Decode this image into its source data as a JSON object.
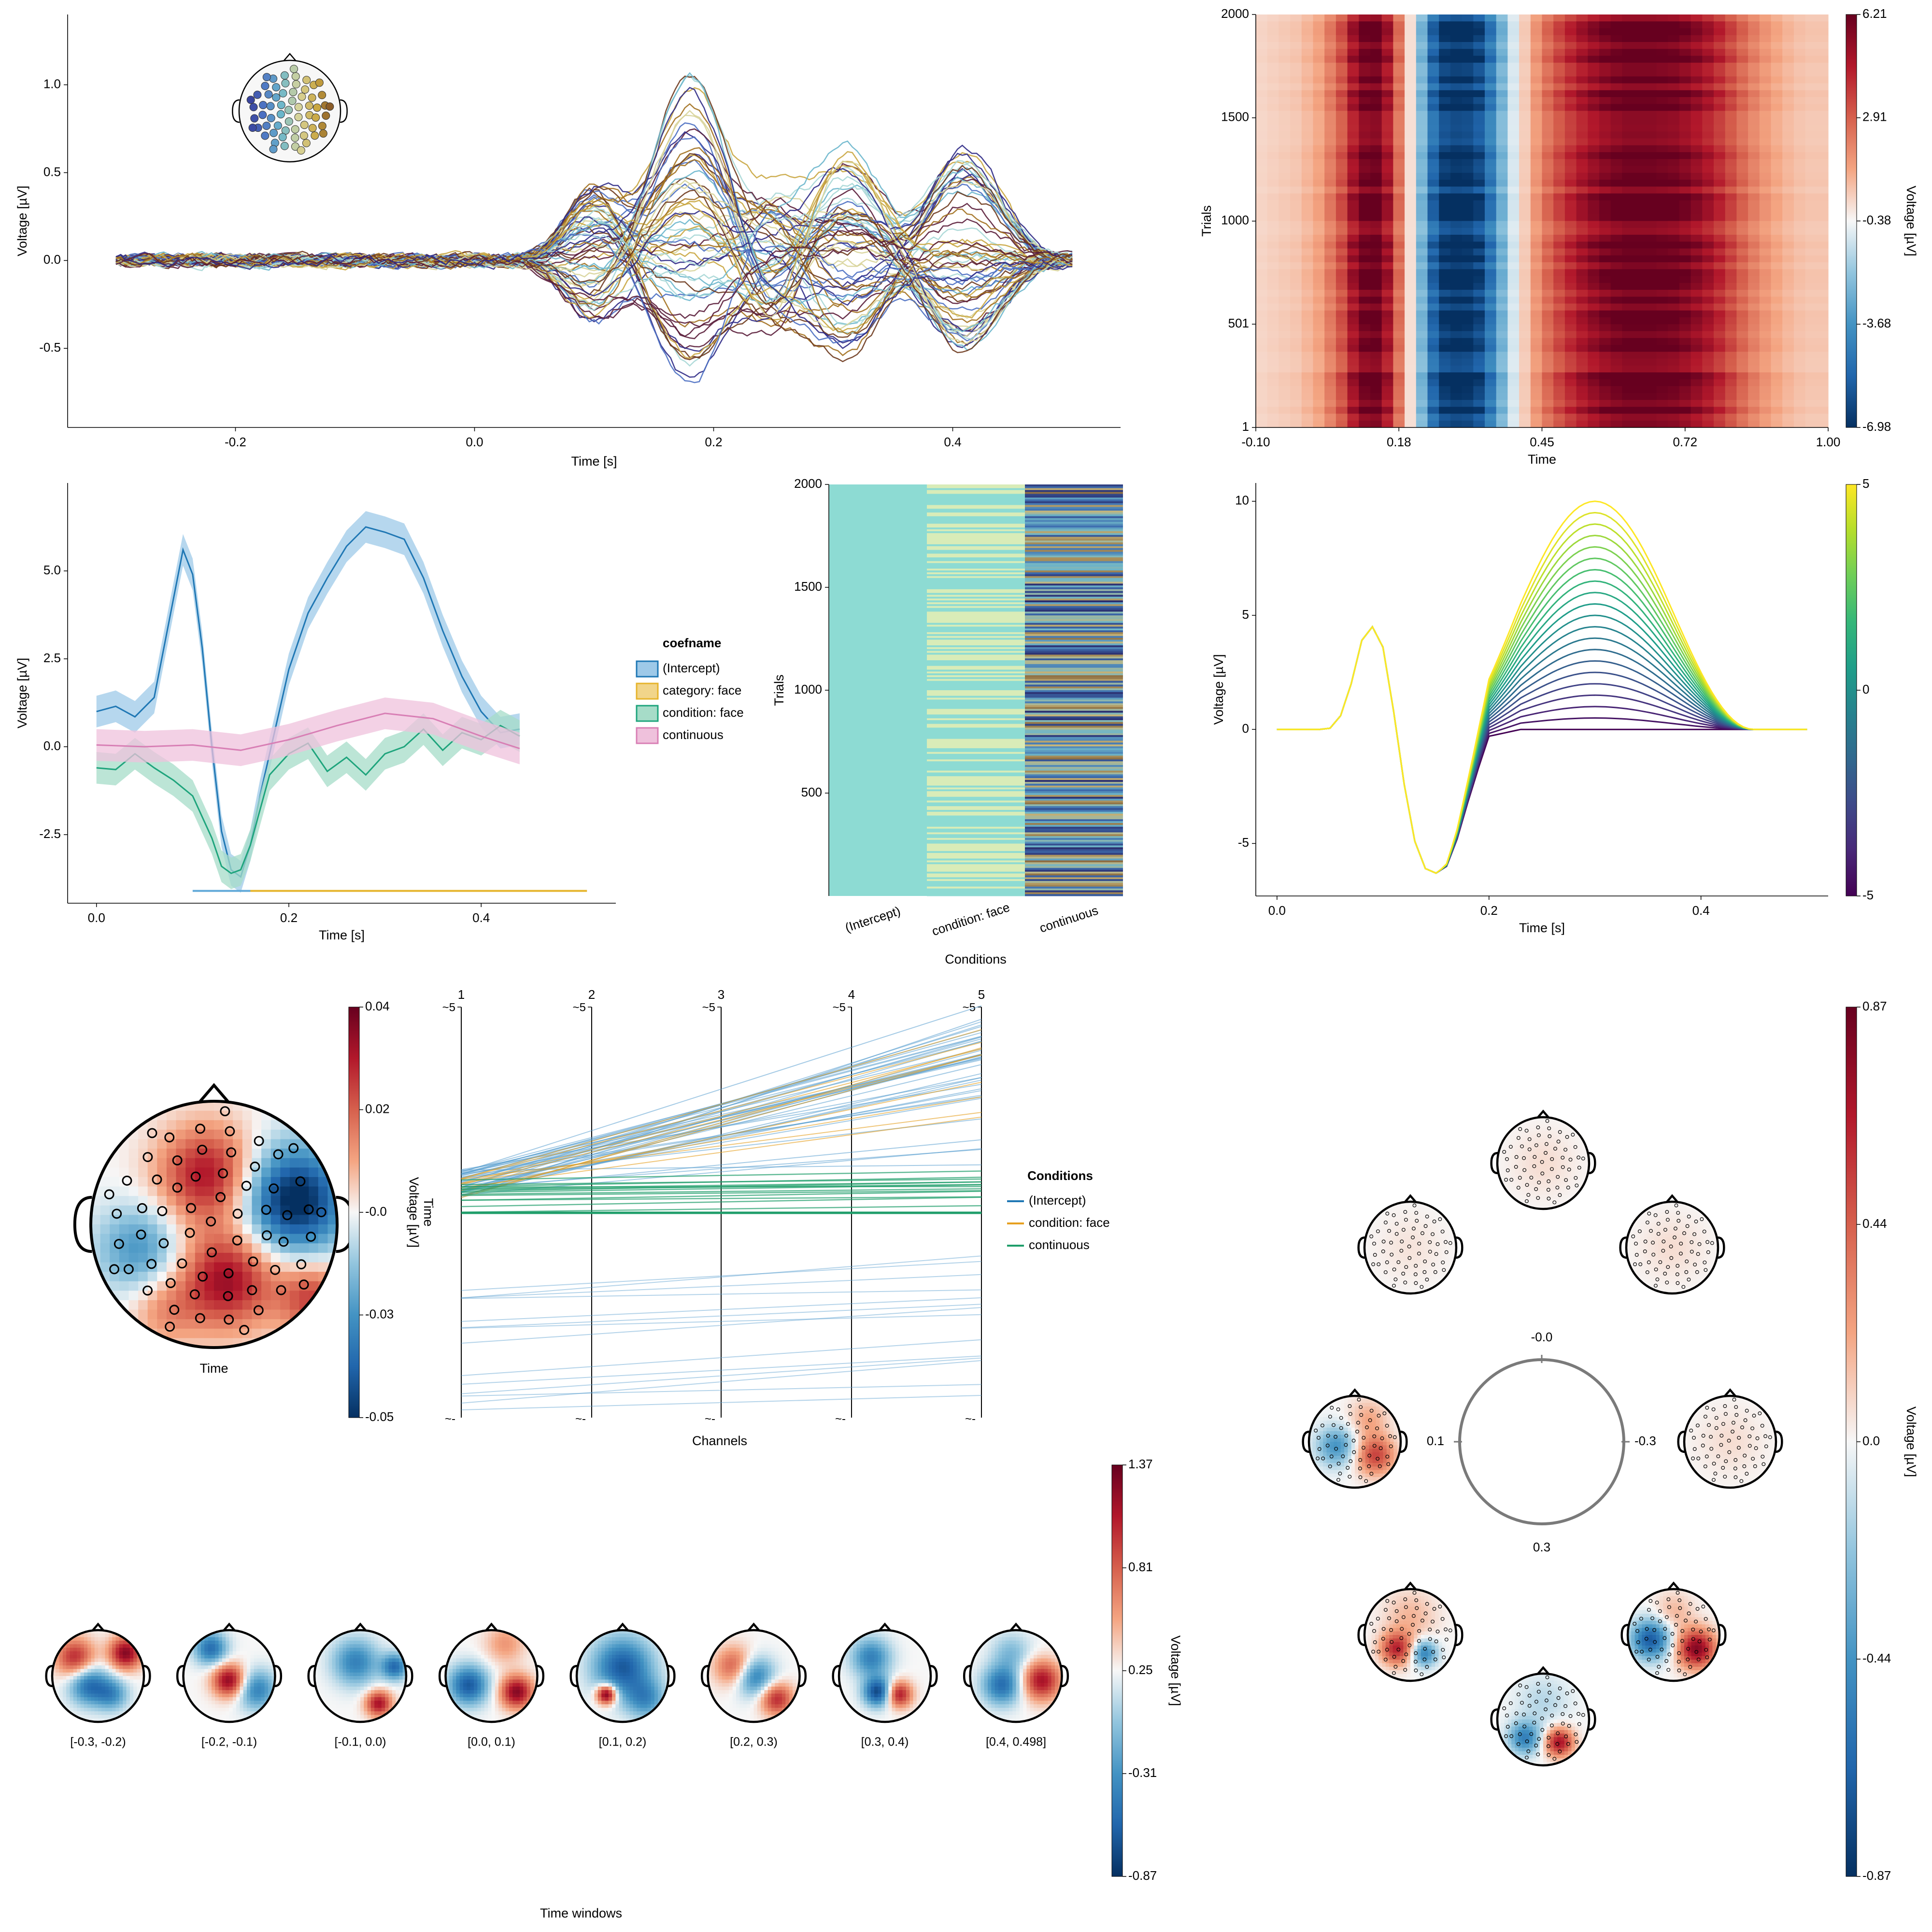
{
  "chart_data": [
    {
      "id": "butterfly",
      "type": "line",
      "xlabel": "Time [s]",
      "ylabel": "Voltage [µV]",
      "xlim": [
        -0.3,
        0.5
      ],
      "ylim": [
        -0.95,
        1.4
      ],
      "xticks": [
        "-0.2",
        "0.0",
        "0.2",
        "0.4"
      ],
      "yticks": [
        "-0.5",
        "0.0",
        "0.5",
        "1.0"
      ],
      "series_count": 64,
      "components": [
        {
          "t": 0.1,
          "w": 0.025,
          "amp": 0.35
        },
        {
          "t": 0.18,
          "w": 0.03,
          "amp": 0.9
        },
        {
          "t": 0.25,
          "w": 0.025,
          "amp": -0.35
        },
        {
          "t": 0.31,
          "w": 0.03,
          "amp": 0.55
        },
        {
          "t": 0.41,
          "w": 0.03,
          "amp": 0.55
        }
      ],
      "palette": [
        "#2f2a86",
        "#4b6fc2",
        "#6ab6cc",
        "#a7d7d6",
        "#d8d49a",
        "#c9a640",
        "#a2701f",
        "#6e3a1e",
        "#5a1d3a"
      ]
    },
    {
      "id": "erpimage",
      "type": "heatmap",
      "xlabel": "Time",
      "ylabel": "Trials",
      "xticks": [
        "-0.10",
        "0.18",
        "0.45",
        "0.72",
        "1.00"
      ],
      "yticks": [
        "1",
        "501",
        "1000",
        "1500",
        "2000"
      ],
      "xlim": [
        -0.1,
        1.0
      ],
      "ylim": [
        1,
        2000
      ],
      "colorbar": {
        "label": "Voltage [µV]",
        "ticks": [
          "-6.98",
          "-3.68",
          "-0.38",
          "2.91",
          "6.21"
        ],
        "min": -6.98,
        "max": 6.21
      },
      "column_values": [
        0.3,
        0.4,
        0.5,
        0.6,
        0.9,
        1.3,
        2.2,
        3.2,
        4.8,
        5.9,
        6.1,
        4.8,
        2.5,
        0.1,
        -2.5,
        -5.2,
        -6.6,
        -6.9,
        -6.8,
        -6.2,
        -4.6,
        -2.6,
        -0.9,
        0.5,
        1.6,
        2.6,
        3.4,
        4.1,
        4.7,
        5.2,
        5.6,
        5.9,
        6.1,
        6.1,
        6.1,
        6.0,
        5.9,
        5.6,
        5.2,
        4.7,
        4.1,
        3.4,
        2.7,
        2.1,
        1.6,
        1.2,
        0.9,
        0.7,
        0.6,
        0.6
      ]
    },
    {
      "id": "coefs",
      "type": "line",
      "xlabel": "Time [s]",
      "ylabel": "Voltage [µV]",
      "xlim": [
        -0.03,
        0.54
      ],
      "ylim": [
        -4.45,
        7.5
      ],
      "xticks": [
        "0.0",
        "0.2",
        "0.4"
      ],
      "yticks": [
        "-2.5",
        "0.0",
        "2.5",
        "5.0"
      ],
      "legend": {
        "title": "coefname",
        "position": "right"
      },
      "series": [
        {
          "name": "(Intercept)",
          "color": "#1f77b4",
          "band": "#9ec9e8",
          "x": [
            0.0,
            0.02,
            0.04,
            0.06,
            0.08,
            0.09,
            0.1,
            0.11,
            0.12,
            0.13,
            0.14,
            0.15,
            0.16,
            0.17,
            0.18,
            0.19,
            0.2,
            0.21,
            0.22,
            0.24,
            0.26,
            0.28,
            0.3,
            0.32,
            0.34,
            0.36,
            0.38,
            0.4,
            0.42,
            0.44
          ],
          "values": [
            1.0,
            1.15,
            0.85,
            1.4,
            4.2,
            5.6,
            4.9,
            2.8,
            0.0,
            -2.4,
            -3.5,
            -3.7,
            -2.8,
            -1.4,
            -0.2,
            1.0,
            2.2,
            3.0,
            3.8,
            4.8,
            5.7,
            6.25,
            6.1,
            5.9,
            4.8,
            3.3,
            2.0,
            1.0,
            0.4,
            0.5
          ]
        },
        {
          "name": "category: face",
          "color": "#e6b42c",
          "band": "#f1d58a",
          "x": [],
          "values": []
        },
        {
          "name": "condition: face",
          "color": "#1ea47c",
          "band": "#a6dcc8",
          "x": [
            0.0,
            0.02,
            0.04,
            0.06,
            0.08,
            0.1,
            0.11,
            0.12,
            0.13,
            0.14,
            0.15,
            0.16,
            0.17,
            0.18,
            0.2,
            0.22,
            0.24,
            0.26,
            0.28,
            0.3,
            0.32,
            0.34,
            0.36,
            0.38,
            0.4,
            0.42,
            0.44
          ],
          "values": [
            -0.6,
            -0.65,
            -0.2,
            -0.6,
            -0.95,
            -1.4,
            -2.0,
            -2.6,
            -3.4,
            -3.6,
            -3.5,
            -2.8,
            -1.8,
            -0.8,
            -0.2,
            0.1,
            -0.7,
            -0.3,
            -0.8,
            -0.2,
            0.0,
            0.5,
            -0.1,
            0.4,
            0.2,
            0.6,
            0.3
          ]
        },
        {
          "name": "continuous",
          "color": "#d87fb5",
          "band": "#efc1dc",
          "x": [
            0.0,
            0.05,
            0.1,
            0.15,
            0.2,
            0.25,
            0.3,
            0.35,
            0.4,
            0.44
          ],
          "values": [
            0.05,
            0.0,
            0.05,
            -0.1,
            0.2,
            0.6,
            0.95,
            0.8,
            0.3,
            -0.05
          ]
        }
      ],
      "sig_bars": [
        {
          "color": "#5fa8d8",
          "x": [
            0.1,
            0.21
          ],
          "y": -4.1
        },
        {
          "color": "#e6b42c",
          "x": [
            0.16,
            0.51
          ],
          "y": -4.1
        }
      ]
    },
    {
      "id": "designmatrix",
      "type": "heatmap",
      "xlabel": "Conditions",
      "ylabel": "Trials",
      "categories": [
        "(Intercept)",
        "condition: face",
        "continuous"
      ],
      "yticks": [
        "500",
        "1000",
        "1500",
        "2000"
      ],
      "ylim": [
        0,
        2000
      ]
    },
    {
      "id": "erp_effects",
      "type": "line",
      "xlabel": "Time [s]",
      "ylabel": "Voltage [µV]",
      "xlim": [
        -0.02,
        0.52
      ],
      "ylim": [
        -7.3,
        10.8
      ],
      "xticks": [
        "0.0",
        "0.2",
        "0.4"
      ],
      "yticks": [
        "-5",
        "0",
        "5",
        "10"
      ],
      "colorbar": {
        "ticks": [
          "-5",
          "0",
          "5"
        ],
        "min": -5,
        "max": 5
      },
      "series_count": 21,
      "base_x": [
        0.0,
        0.02,
        0.04,
        0.05,
        0.06,
        0.07,
        0.08,
        0.09,
        0.1,
        0.11,
        0.12,
        0.13,
        0.14,
        0.15,
        0.16,
        0.17,
        0.18,
        0.19,
        0.2
      ],
      "base_y": [
        0,
        0,
        0,
        0.05,
        0.6,
        2.0,
        3.9,
        4.5,
        3.6,
        0.8,
        -2.4,
        -4.9,
        -6.1,
        -6.3,
        -6.0,
        -4.8,
        -3.2,
        -1.7,
        -0.3
      ],
      "effect_peak": {
        "t": 0.3,
        "w": 0.075,
        "max": 10
      }
    },
    {
      "id": "topoplot",
      "type": "heatmap",
      "xlabel": "Time",
      "colorbar": {
        "label": "Voltage [µV]",
        "ticks": [
          "-0.05",
          "-0.03",
          "-0.0",
          "0.02",
          "0.04"
        ],
        "min": -0.05,
        "max": 0.04
      }
    },
    {
      "id": "parallel",
      "type": "line",
      "xlabel": "Channels",
      "ylabel": "Time",
      "axes": [
        "1",
        "2",
        "3",
        "4",
        "5"
      ],
      "top_tick": "~5",
      "bottom_tick": "~-",
      "legend": {
        "title": "Conditions",
        "position": "right"
      },
      "series": [
        {
          "name": "(Intercept)",
          "color": "#1f77b4"
        },
        {
          "name": "condition: face",
          "color": "#e6a020"
        },
        {
          "name": "continuous",
          "color": "#1f9e6a"
        }
      ]
    },
    {
      "id": "topoplot_series",
      "type": "heatmap",
      "xlabel": "Time windows",
      "labels": [
        "[-0.3, -0.2)",
        "[-0.2, -0.1)",
        "[-0.1, 0.0)",
        "[0.0, 0.1)",
        "[0.1, 0.2)",
        "[0.2, 0.3)",
        "[0.3, 0.4)",
        "[0.4, 0.498]"
      ],
      "colorbar": {
        "label": "Voltage [µV]",
        "ticks": [
          "-0.87",
          "-0.31",
          "0.25",
          "0.81",
          "1.37"
        ],
        "min": -0.87,
        "max": 1.37
      }
    },
    {
      "id": "circular",
      "type": "heatmap",
      "labels": [
        "-0.0",
        "0.1",
        "-0.3",
        "0.3"
      ],
      "colorbar": {
        "label": "Voltage [µV]",
        "ticks": [
          "-0.87",
          "-0.44",
          "0.0",
          "0.44",
          "0.87"
        ],
        "min": -0.87,
        "max": 0.87
      }
    }
  ]
}
